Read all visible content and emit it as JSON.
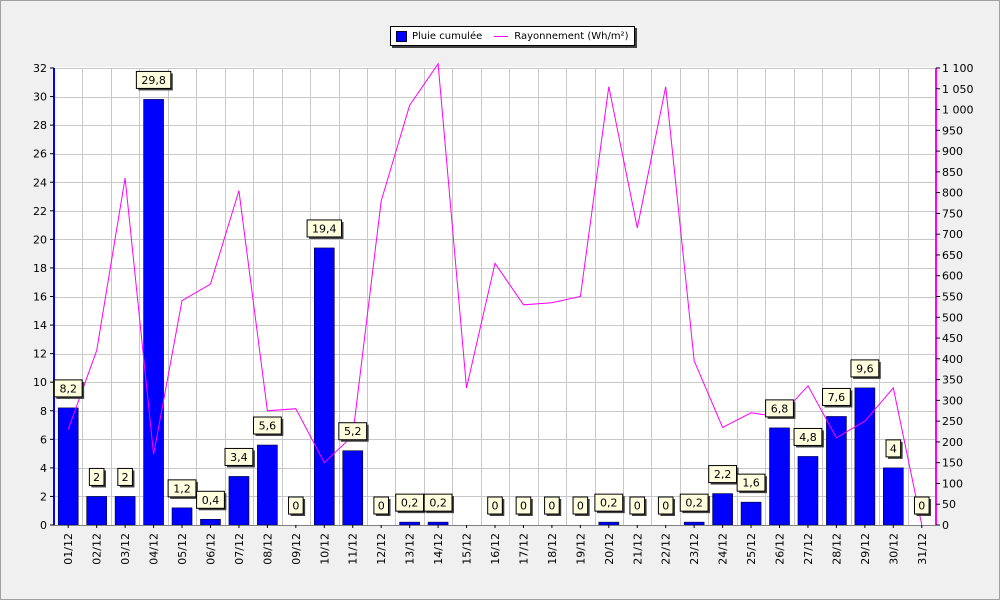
{
  "chart_data": {
    "type": "bar",
    "categories": [
      "01/12",
      "02/12",
      "03/12",
      "04/12",
      "05/12",
      "06/12",
      "07/12",
      "08/12",
      "09/12",
      "10/12",
      "11/12",
      "12/12",
      "13/12",
      "14/12",
      "15/12",
      "16/12",
      "17/12",
      "18/12",
      "19/12",
      "20/12",
      "21/12",
      "22/12",
      "23/12",
      "24/12",
      "25/12",
      "26/12",
      "27/12",
      "28/12",
      "29/12",
      "30/12",
      "31/12"
    ],
    "series": [
      {
        "name": "Pluie cumulée",
        "type": "bar",
        "axis": "left",
        "color": "#0000ff",
        "values": [
          8.2,
          2,
          2,
          29.8,
          1.2,
          0.4,
          3.4,
          5.6,
          0,
          19.4,
          5.2,
          0,
          0.2,
          0.2,
          0,
          0,
          0,
          0,
          0,
          0.2,
          0,
          0,
          0.2,
          2.2,
          1.6,
          6.8,
          4.8,
          7.6,
          9.6,
          4,
          0
        ],
        "labels": [
          "8,2",
          "2",
          "2",
          "29,8",
          "1,2",
          "0,4",
          "3,4",
          "5,6",
          "0",
          "19,4",
          "5,2",
          "0",
          "0,2",
          "0,2",
          "",
          "0",
          "0",
          "0",
          "0",
          "0,2",
          "0",
          "0",
          "0,2",
          "2,2",
          "1,6",
          "6,8",
          "4,8",
          "7,6",
          "9,6",
          "4",
          "0"
        ]
      },
      {
        "name": "Rayonnement (Wh/m²)",
        "type": "line",
        "axis": "right",
        "color": "#ff00ff",
        "values": [
          230,
          420,
          835,
          170,
          540,
          580,
          805,
          275,
          280,
          150,
          215,
          780,
          1010,
          1110,
          330,
          630,
          530,
          535,
          550,
          1055,
          715,
          1055,
          395,
          235,
          270,
          260,
          335,
          210,
          250,
          330,
          0
        ]
      }
    ],
    "y_left": {
      "min": 0,
      "max": 32,
      "step": 2
    },
    "y_right": {
      "min": 0,
      "max": 1100,
      "step": 50,
      "tick_labels": [
        "0",
        "50",
        "100",
        "150",
        "200",
        "250",
        "300",
        "350",
        "400",
        "450",
        "500",
        "550",
        "600",
        "650",
        "700",
        "750",
        "800",
        "850",
        "900",
        "950",
        "1 000",
        "1 050",
        "1 100"
      ]
    },
    "grid": true,
    "legend_position": "top-center"
  }
}
